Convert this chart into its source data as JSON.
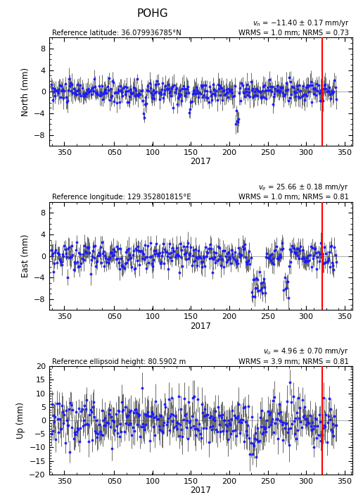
{
  "title": "POHG",
  "panels": [
    {
      "ylabel": "North (mm)",
      "ref_label": "Reference latitude: 36.079936785°N",
      "vel_label": "$v_n$ = −11.40 ± 0.17 mm/yr",
      "wrms_label": "WRMS = 1.0 mm; NRMS = 0.73",
      "ylim": [
        -10,
        10
      ],
      "yticks": [
        -8,
        -4,
        0,
        4,
        8
      ],
      "noise_std": 1.1,
      "err_lo": 0.8,
      "err_hi": 2.2,
      "seed": 10
    },
    {
      "ylabel": "East (mm)",
      "ref_label": "Reference longitude: 129.352801815°E",
      "vel_label": "$v_e$ = 25.66 ± 0.18 mm/yr",
      "wrms_label": "WRMS = 1.0 mm; NRMS = 0.81",
      "ylim": [
        -10,
        10
      ],
      "yticks": [
        -8,
        -4,
        0,
        4,
        8
      ],
      "noise_std": 1.3,
      "err_lo": 0.8,
      "err_hi": 2.2,
      "seed": 20
    },
    {
      "ylabel": "Up (mm)",
      "ref_label": "Reference ellipsoid height: 80.5902 m",
      "vel_label": "$v_u$ = 4.96 ± 0.70 mm/yr",
      "wrms_label": "WRMS = 3.9 mm; NRMS = 0.81",
      "ylim": [
        -20,
        20
      ],
      "yticks": [
        -20,
        -15,
        -10,
        -5,
        0,
        5,
        10,
        15,
        20
      ],
      "noise_std": 4.0,
      "err_lo": 3.0,
      "err_hi": 6.5,
      "seed": 30
    }
  ],
  "xlabel": "2017",
  "red_line_day": 321,
  "xtick_positions": [
    350,
    415,
    465,
    515,
    565,
    615,
    665,
    715
  ],
  "xticklabels": [
    "350",
    "050",
    "100",
    "150",
    "200",
    "250",
    "300",
    "350"
  ],
  "xlim": [
    330,
    725
  ],
  "dot_color": "#1a1aff",
  "err_color": "#404040",
  "red_line_color": "#FF0000",
  "bg_color": "#FFFFFF"
}
